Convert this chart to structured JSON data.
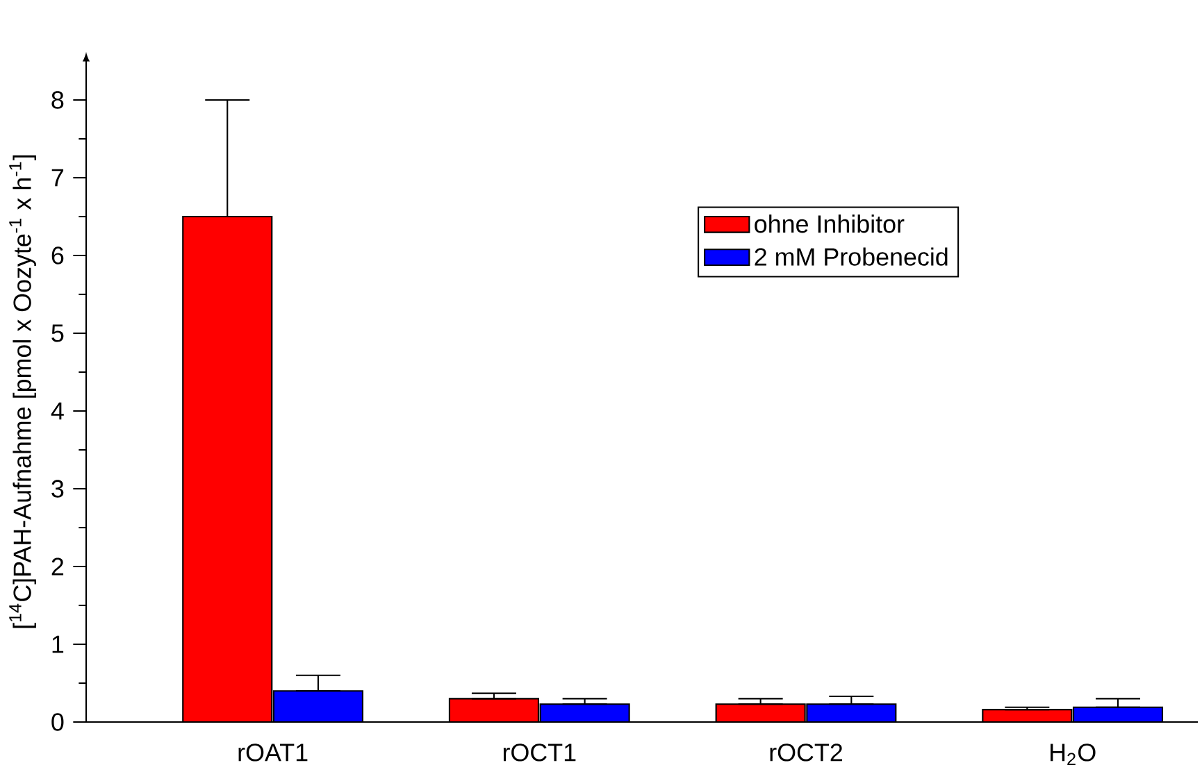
{
  "chart_data": {
    "type": "bar",
    "ylabel": "[$^{14}$C]PAH-Aufnahme [pmol x Oozyte$^{-1}$ x h$^{-1}$]",
    "categories": [
      "rOAT1",
      "rOCT1",
      "rOCT2",
      "H$_{2}$O"
    ],
    "series": [
      {
        "name": "ohne Inhibitor",
        "color": "#ff0000",
        "values": [
          6.5,
          0.3,
          0.23,
          0.16
        ],
        "errors": [
          [
            6.5,
            8.0
          ],
          [
            0.3,
            0.37
          ],
          [
            0.23,
            0.3
          ],
          [
            0.16,
            0.19
          ]
        ]
      },
      {
        "name": "2 mM Probenecid",
        "color": "#0000ff",
        "values": [
          0.4,
          0.23,
          0.23,
          0.19
        ],
        "errors": [
          [
            0.4,
            0.6
          ],
          [
            0.23,
            0.3
          ],
          [
            0.23,
            0.33
          ],
          [
            0.19,
            0.3
          ]
        ]
      }
    ],
    "ylim": [
      0,
      8.5
    ],
    "yticks": [
      0,
      1,
      2,
      3,
      4,
      5,
      6,
      7,
      8
    ],
    "legend": "top right",
    "grid": false
  }
}
